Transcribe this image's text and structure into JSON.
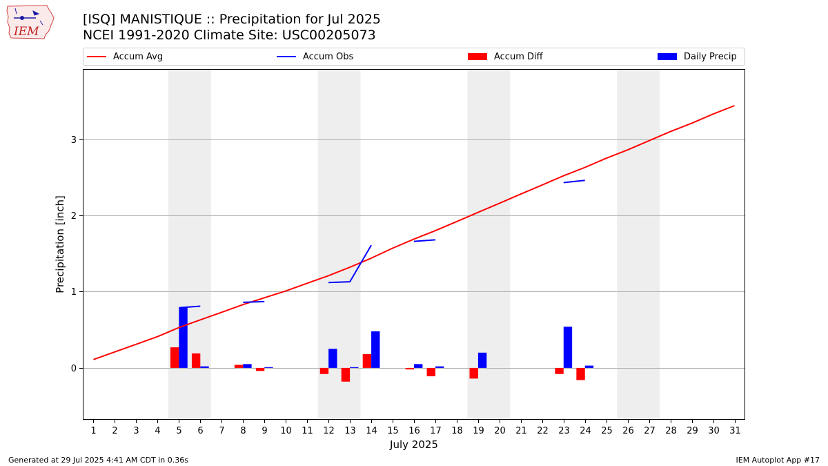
{
  "header": {
    "title_line1": "[ISQ] MANISTIQUE :: Precipitation for Jul 2025",
    "title_line2": "NCEI 1991-2020 Climate Site: USC00205073"
  },
  "logo": {
    "text": "IEM"
  },
  "footer": {
    "left": "Generated at 29 Jul 2025 4:41 AM CDT in 0.36s",
    "right": "IEM Autoplot App #17"
  },
  "chart_data": {
    "type": "bar",
    "xlabel": "July 2025",
    "ylabel": "Precipitation [inch]",
    "xlim": [
      0.5,
      31.5
    ],
    "ylim": [
      -0.68,
      3.92
    ],
    "yticks": [
      0,
      1,
      2,
      3
    ],
    "grid": "y",
    "legend_position": "top",
    "weekend_shading": [
      [
        5,
        6
      ],
      [
        12,
        13
      ],
      [
        19,
        20
      ],
      [
        26,
        27
      ]
    ],
    "categories": [
      "1",
      "2",
      "3",
      "4",
      "5",
      "6",
      "7",
      "8",
      "9",
      "10",
      "11",
      "12",
      "13",
      "14",
      "15",
      "16",
      "17",
      "18",
      "19",
      "20",
      "21",
      "22",
      "23",
      "24",
      "25",
      "26",
      "27",
      "28",
      "29",
      "30",
      "31"
    ],
    "series": [
      {
        "name": "Accum Avg",
        "kind": "line",
        "color": "#ff0000",
        "x": [
          1,
          2,
          3,
          4,
          5,
          6,
          7,
          8,
          9,
          10,
          11,
          12,
          13,
          14,
          15,
          16,
          17,
          18,
          19,
          20,
          21,
          22,
          23,
          24,
          25,
          26,
          27,
          28,
          29,
          30,
          31
        ],
        "values": [
          0.11,
          0.21,
          0.31,
          0.41,
          0.53,
          0.63,
          0.73,
          0.83,
          0.92,
          1.01,
          1.11,
          1.21,
          1.32,
          1.44,
          1.57,
          1.69,
          1.8,
          1.92,
          2.04,
          2.16,
          2.28,
          2.4,
          2.52,
          2.63,
          2.75,
          2.86,
          2.98,
          3.1,
          3.21,
          3.33,
          3.44
        ]
      },
      {
        "name": "Accum Obs",
        "kind": "line",
        "color": "#0000ff",
        "x": [
          5,
          6,
          null,
          8,
          9,
          null,
          12,
          13,
          14,
          null,
          16,
          17,
          null,
          23,
          24
        ],
        "values": [
          0.79,
          0.81,
          null,
          0.86,
          0.87,
          null,
          1.12,
          1.13,
          1.61,
          null,
          1.66,
          1.68,
          null,
          2.43,
          2.46
        ]
      },
      {
        "name": "Accum Diff",
        "kind": "bar",
        "color": "#ff0000",
        "x": [
          5,
          6,
          8,
          9,
          12,
          13,
          14,
          16,
          17,
          19,
          23,
          24
        ],
        "values": [
          0.27,
          0.19,
          0.04,
          -0.04,
          -0.08,
          -0.18,
          0.18,
          -0.02,
          -0.11,
          -0.14,
          -0.08,
          -0.16
        ]
      },
      {
        "name": "Daily Precip",
        "kind": "bar",
        "color": "#0000ff",
        "x": [
          5,
          6,
          8,
          9,
          12,
          13,
          14,
          16,
          17,
          19,
          23,
          24
        ],
        "values": [
          0.79,
          0.02,
          0.05,
          0.01,
          0.25,
          0.01,
          0.48,
          0.05,
          0.02,
          0.2,
          0.54,
          0.03
        ]
      }
    ]
  }
}
